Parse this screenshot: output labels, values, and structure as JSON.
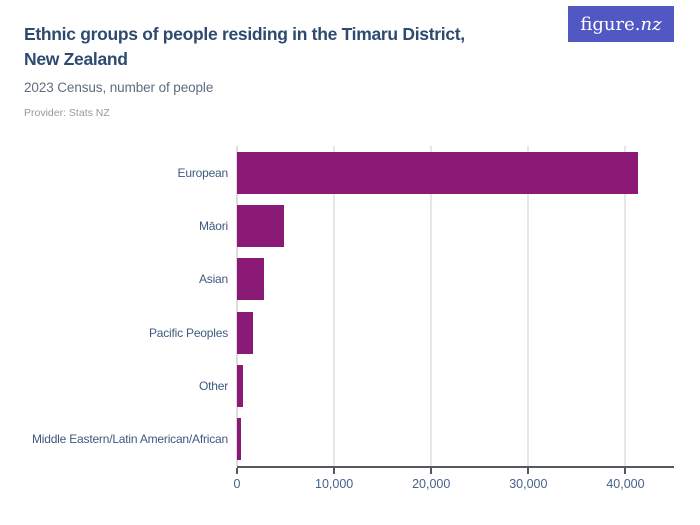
{
  "brand": {
    "name_main": "figure.",
    "name_suffix": "nz",
    "bg_color": "#5158c4",
    "text_color": "#ffffff"
  },
  "header": {
    "title_line1": "Ethnic groups of people residing in the Timaru District,",
    "title_line2": "New Zealand",
    "subtitle": "2023 Census, number of people",
    "provider": "Provider: Stats NZ"
  },
  "chart_data": {
    "type": "bar",
    "orientation": "horizontal",
    "title": "Ethnic groups of people residing in the Timaru District, New Zealand",
    "subtitle": "2023 Census, number of people",
    "categories": [
      "European",
      "Māori",
      "Asian",
      "Pacific Peoples",
      "Other",
      "Middle Eastern/Latin American/African"
    ],
    "values": [
      41300,
      4800,
      2750,
      1600,
      660,
      440
    ],
    "xlabel": "",
    "ylabel": "",
    "xlim": [
      0,
      45000
    ],
    "xticks": {
      "values": [
        0,
        10000,
        20000,
        30000,
        40000
      ],
      "labels": [
        "0",
        "10,000",
        "20,000",
        "30,000",
        "40,000"
      ]
    },
    "grid": "vertical-only",
    "legend": "none",
    "bar_color": "#8a1a76",
    "gridline_color": "#e7e7e7",
    "axis_color": "#55585e",
    "tick_label_color": "#46618a",
    "category_label_color": "#3d5a80"
  }
}
